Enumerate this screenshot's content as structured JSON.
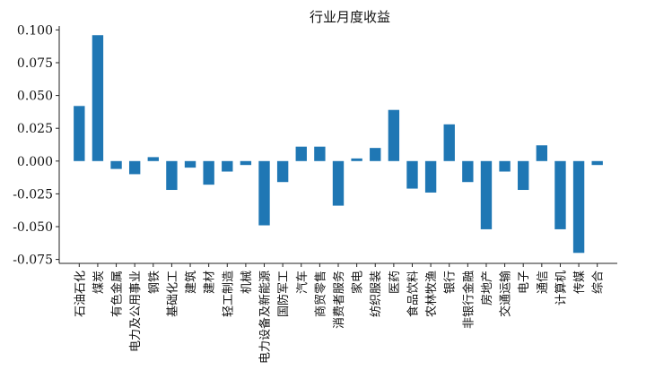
{
  "chart_data": {
    "type": "bar",
    "title": "行业月度收益",
    "xlabel": "",
    "ylabel": "",
    "ylim": [
      -0.078,
      0.103
    ],
    "yticks": [
      0.1,
      0.075,
      0.05,
      0.025,
      0.0,
      -0.025,
      -0.05,
      -0.075
    ],
    "ytick_labels": [
      "0.100",
      "0.075",
      "0.050",
      "0.025",
      "0.000",
      "-0.025",
      "-0.050",
      "-0.075"
    ],
    "grid": false,
    "bar_color": "#1f77b4",
    "categories": [
      "石油石化",
      "煤炭",
      "有色金属",
      "电力及公用事业",
      "钢铁",
      "基础化工",
      "建筑",
      "建材",
      "轻工制造",
      "机械",
      "电力设备及新能源",
      "国防军工",
      "汽车",
      "商贸零售",
      "消费者服务",
      "家电",
      "纺织服装",
      "医药",
      "食品饮料",
      "农林牧渔",
      "银行",
      "非银行金融",
      "房地产",
      "交通运输",
      "电子",
      "通信",
      "计算机",
      "传媒",
      "综合"
    ],
    "values": [
      0.042,
      0.096,
      -0.006,
      -0.01,
      0.003,
      -0.022,
      -0.005,
      -0.018,
      -0.008,
      -0.003,
      -0.049,
      -0.016,
      0.011,
      0.011,
      -0.034,
      0.002,
      0.01,
      0.039,
      -0.021,
      -0.024,
      0.028,
      -0.016,
      -0.052,
      -0.008,
      -0.022,
      0.012,
      -0.052,
      -0.07,
      -0.003
    ]
  }
}
